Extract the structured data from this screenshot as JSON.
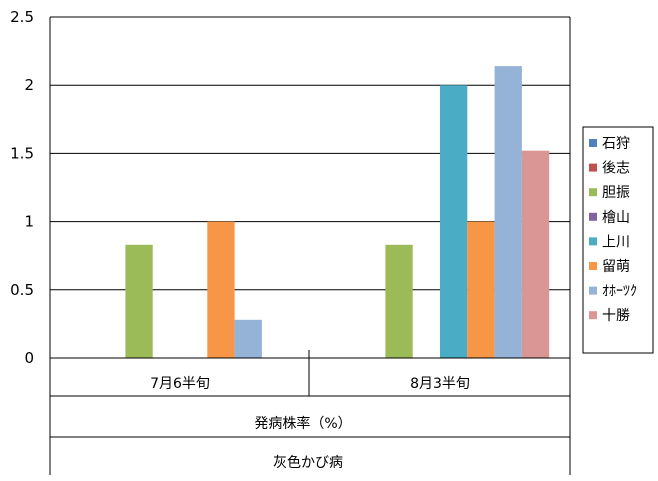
{
  "chart_data": {
    "type": "bar",
    "title": "",
    "categories": [
      "7月6半旬",
      "8月3半旬"
    ],
    "axis_group_labels": [
      "発病株率（%）",
      "灰色かび病"
    ],
    "ylim": [
      0,
      2.5
    ],
    "yticks": [
      "0",
      "0.5",
      "1",
      "1.5",
      "2",
      "2.5"
    ],
    "ytick_values": [
      0,
      0.5,
      1,
      1.5,
      2,
      2.5
    ],
    "grid": true,
    "legend_position": "right",
    "series": [
      {
        "name": "石狩",
        "color": "#4F81BD",
        "values": [
          0,
          0
        ]
      },
      {
        "name": "後志",
        "color": "#C0504D",
        "values": [
          0,
          0
        ]
      },
      {
        "name": "胆振",
        "color": "#9BBB59",
        "values": [
          0.83,
          0.83
        ]
      },
      {
        "name": "檜山",
        "color": "#8064A2",
        "values": [
          0,
          0
        ]
      },
      {
        "name": "上川",
        "color": "#4BACC6",
        "values": [
          0,
          2.0
        ]
      },
      {
        "name": "留萌",
        "color": "#F79646",
        "values": [
          1.0,
          1.0
        ]
      },
      {
        "name": "ｵﾎｰﾂｸ",
        "color": "#95B3D7",
        "values": [
          0.28,
          2.14
        ]
      },
      {
        "name": "十勝",
        "color": "#D99694",
        "values": [
          0,
          1.52
        ]
      }
    ]
  }
}
